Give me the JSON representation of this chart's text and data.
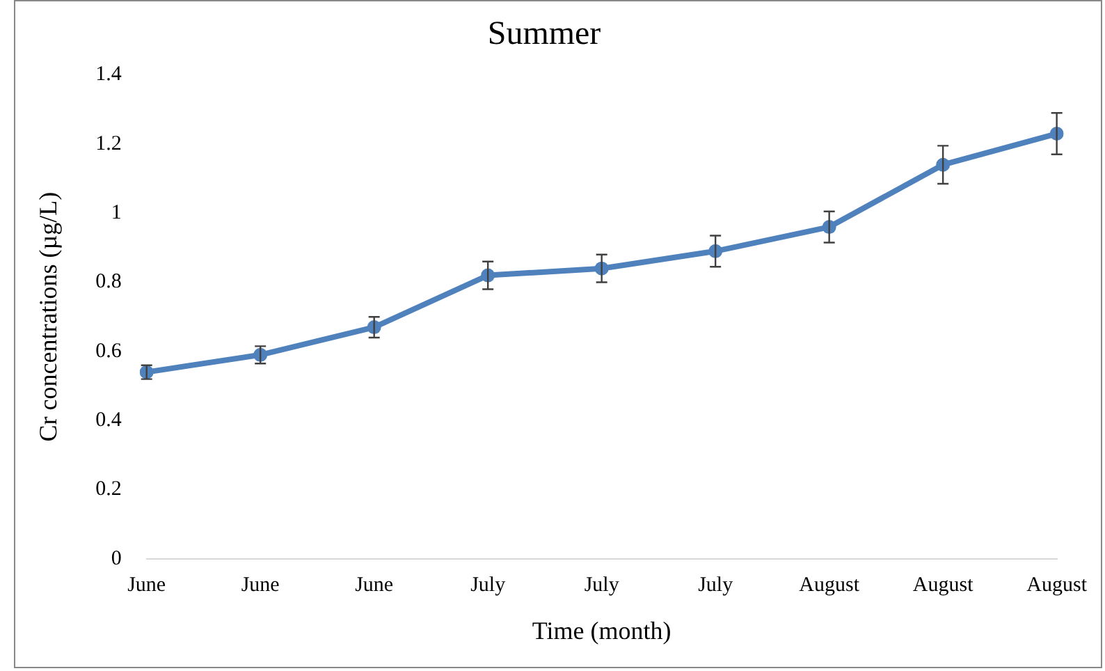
{
  "chart_data": {
    "type": "line",
    "title": "Summer",
    "xlabel": "Time (month)",
    "ylabel": "Cr concentrations (µg/L)",
    "categories": [
      "June",
      "June",
      "June",
      "July",
      "July",
      "July",
      "August",
      "August",
      "August"
    ],
    "series": [
      {
        "color": "#4f81bd",
        "values": [
          0.54,
          0.59,
          0.67,
          0.82,
          0.84,
          0.89,
          0.96,
          1.14,
          1.23
        ],
        "errors": [
          0.02,
          0.025,
          0.03,
          0.04,
          0.04,
          0.045,
          0.045,
          0.055,
          0.06
        ]
      }
    ],
    "ylim": [
      0,
      1.4
    ],
    "yticks": [
      0,
      0.2,
      0.4,
      0.6,
      0.8,
      {
        "value": 1,
        "label": "1"
      },
      1.2,
      1.4
    ],
    "grid": false,
    "legend": false,
    "marker": "circle",
    "line_style": "solid"
  }
}
